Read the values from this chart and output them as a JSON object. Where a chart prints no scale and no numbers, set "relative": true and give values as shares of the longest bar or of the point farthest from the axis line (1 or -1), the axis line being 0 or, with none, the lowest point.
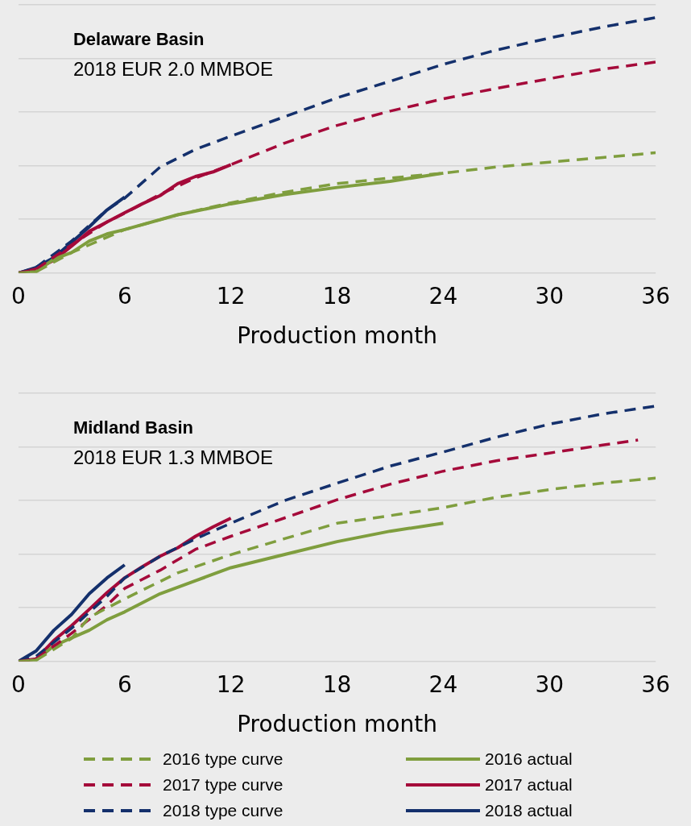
{
  "chart_data": [
    {
      "type": "line",
      "title": "Delaware Basin",
      "subtitle": "2018 EUR 2.0 MMBOE",
      "xlabel": "Production month",
      "relative": true,
      "xlim": [
        0,
        36
      ],
      "xticks": [
        0,
        6,
        12,
        18,
        24,
        30,
        36
      ],
      "grid": "y",
      "legend": false,
      "marker": "none",
      "series": [
        {
          "color": "#7f9e3e",
          "line_style": "dashed",
          "x": [
            0,
            1,
            3,
            6,
            9,
            12,
            15,
            18,
            21,
            24,
            27,
            30,
            33,
            36
          ],
          "values": [
            0,
            0.005,
            0.08,
            0.17,
            0.228,
            0.275,
            0.316,
            0.35,
            0.372,
            0.391,
            0.415,
            0.434,
            0.452,
            0.471
          ]
        },
        {
          "color": "#a50a3a",
          "line_style": "dashed",
          "x": [
            0,
            1,
            3,
            5,
            6,
            8,
            10,
            12,
            15,
            18,
            21,
            24,
            27,
            30,
            33,
            36
          ],
          "values": [
            0,
            0.015,
            0.11,
            0.2,
            0.234,
            0.308,
            0.372,
            0.424,
            0.508,
            0.578,
            0.634,
            0.682,
            0.723,
            0.761,
            0.798,
            0.826
          ]
        },
        {
          "color": "#14306c",
          "line_style": "dashed",
          "x": [
            0,
            1,
            3,
            5,
            6,
            8,
            10,
            12,
            15,
            18,
            21,
            24,
            27,
            30,
            33,
            36
          ],
          "values": [
            0,
            0.022,
            0.125,
            0.247,
            0.293,
            0.415,
            0.484,
            0.536,
            0.611,
            0.686,
            0.751,
            0.817,
            0.873,
            0.92,
            0.963,
            1
          ]
        },
        {
          "color": "#7f9e3e",
          "line_style": "solid",
          "x": [
            0,
            1,
            2,
            3,
            4,
            5,
            6,
            9,
            12,
            15,
            18,
            21,
            24
          ],
          "values": [
            0,
            0.005,
            0.054,
            0.08,
            0.125,
            0.153,
            0.17,
            0.228,
            0.271,
            0.307,
            0.335,
            0.359,
            0.391
          ]
        },
        {
          "color": "#a50a3a",
          "line_style": "solid",
          "x": [
            0,
            1,
            2,
            3,
            4,
            5,
            6,
            7,
            8,
            9,
            10,
            11,
            12
          ],
          "values": [
            0,
            0.015,
            0.05,
            0.105,
            0.163,
            0.2,
            0.236,
            0.271,
            0.303,
            0.35,
            0.378,
            0.396,
            0.424
          ]
        },
        {
          "color": "#14306c",
          "line_style": "solid",
          "x": [
            0,
            1,
            2,
            3,
            4,
            5,
            6
          ],
          "values": [
            0,
            0.022,
            0.06,
            0.12,
            0.181,
            0.247,
            0.297
          ]
        }
      ]
    },
    {
      "type": "line",
      "title": "Midland Basin",
      "subtitle": "2018 EUR 1.3 MMBOE",
      "xlabel": "Production month",
      "relative": true,
      "xlim": [
        0,
        36
      ],
      "xticks": [
        0,
        6,
        12,
        18,
        24,
        30,
        36
      ],
      "grid": "y",
      "legend": "bottom",
      "marker": "none",
      "series": [
        {
          "name": "2016 type curve",
          "color": "#7f9e3e",
          "line_style": "dashed",
          "x": [
            0,
            1,
            3,
            4,
            6,
            9,
            12,
            15,
            18,
            21,
            24,
            27,
            30,
            33,
            36
          ],
          "values": [
            0,
            0.005,
            0.09,
            0.173,
            0.245,
            0.347,
            0.418,
            0.48,
            0.541,
            0.571,
            0.602,
            0.643,
            0.673,
            0.698,
            0.718
          ]
        },
        {
          "name": "2017 type curve",
          "color": "#a50a3a",
          "line_style": "dashed",
          "x": [
            0,
            1,
            3,
            5,
            6,
            8,
            10,
            12,
            15,
            18,
            21,
            24,
            27,
            30,
            33,
            35
          ],
          "values": [
            0,
            0.01,
            0.11,
            0.22,
            0.286,
            0.357,
            0.439,
            0.49,
            0.561,
            0.633,
            0.694,
            0.745,
            0.786,
            0.816,
            0.847,
            0.867
          ]
        },
        {
          "name": "2018 type curve",
          "color": "#14306c",
          "line_style": "dashed",
          "x": [
            0,
            1,
            3,
            5,
            6,
            8,
            10,
            12,
            15,
            18,
            21,
            24,
            27,
            30,
            33,
            36
          ],
          "values": [
            0,
            0.02,
            0.13,
            0.255,
            0.327,
            0.412,
            0.48,
            0.541,
            0.629,
            0.698,
            0.765,
            0.82,
            0.878,
            0.929,
            0.969,
            1
          ]
        },
        {
          "name": "2016 actual",
          "color": "#7f9e3e",
          "line_style": "solid",
          "x": [
            0,
            1,
            2,
            3,
            4,
            5,
            6,
            8,
            10,
            12,
            15,
            18,
            21,
            24
          ],
          "values": [
            0,
            0.005,
            0.061,
            0.092,
            0.122,
            0.163,
            0.194,
            0.265,
            0.316,
            0.367,
            0.418,
            0.469,
            0.51,
            0.541
          ]
        },
        {
          "name": "2017 actual",
          "color": "#a50a3a",
          "line_style": "solid",
          "x": [
            0,
            1,
            2,
            3,
            4,
            5,
            6,
            7,
            8,
            9,
            10,
            11,
            12
          ],
          "values": [
            0,
            0.01,
            0.082,
            0.14,
            0.204,
            0.269,
            0.327,
            0.371,
            0.412,
            0.445,
            0.49,
            0.527,
            0.561
          ]
        },
        {
          "name": "2018 actual",
          "color": "#14306c",
          "line_style": "solid",
          "x": [
            0,
            1,
            2,
            3,
            4,
            5,
            6
          ],
          "values": [
            0,
            0.041,
            0.122,
            0.184,
            0.265,
            0.327,
            0.378
          ]
        }
      ]
    }
  ]
}
